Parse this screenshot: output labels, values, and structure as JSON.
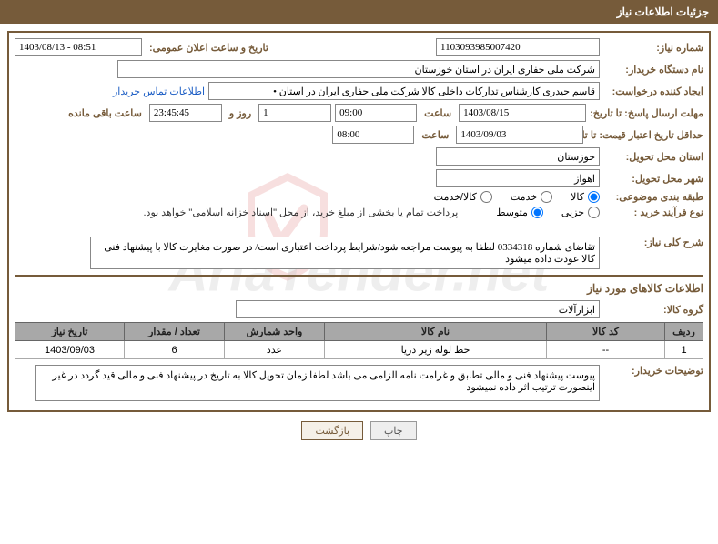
{
  "colors": {
    "primary": "#765b3a",
    "border": "#888888",
    "link": "#1a5cc4",
    "th_bg": "#a8a8a8",
    "white": "#ffffff"
  },
  "header": {
    "title": "جزئیات اطلاعات نیاز"
  },
  "watermark": "AriaTender.net",
  "fields": {
    "need_no_label": "شماره نیاز:",
    "need_no": "1103093985007420",
    "announce_label": "تاریخ و ساعت اعلان عمومی:",
    "announce_value": "1403/08/13 - 08:51",
    "buyer_label": "نام دستگاه خریدار:",
    "buyer_value": "شرکت ملی حفاری ایران در استان خوزستان",
    "requester_label": "ایجاد کننده درخواست:",
    "requester_value": "قاسم حیدری کارشناس تدارکات داخلی کالا شرکت ملی حفاری ایران در استان •",
    "contact_link": "اطلاعات تماس خریدار",
    "deadline_label": "مهلت ارسال پاسخ: تا تاریخ:",
    "deadline_date": "1403/08/15",
    "hour_label": "ساعت",
    "deadline_time": "09:00",
    "days_count": "1",
    "days_and": "روز و",
    "countdown": "23:45:45",
    "remaining_label": "ساعت باقی مانده",
    "validity_label": "حداقل تاریخ اعتبار قیمت: تا تاریخ:",
    "validity_date": "1403/09/03",
    "validity_time": "08:00",
    "province_label": "استان محل تحویل:",
    "province_value": "خوزستان",
    "city_label": "شهر محل تحویل:",
    "city_value": "اهواز",
    "category_label": "طبقه بندی موضوعی:",
    "process_label": "نوع فرآیند خرید :",
    "payment_note": "پرداخت تمام یا بخشی از مبلغ خرید، از محل \"اسناد خزانه اسلامی\" خواهد بود.",
    "description_label": "شرح کلی نیاز:",
    "description_value": "تقاضای شماره 0334318 لطفا به پیوست مراجعه شود/شرایط پرداخت اعتباری است/ در صورت مغایرت کالا با پیشنهاد فنی کالا عودت داده میشود",
    "buyer_notes_label": "توضیحات خریدار:",
    "buyer_notes_value": "پیوست پیشنهاد فنی و مالی تطابق و غرامت نامه الزامی می باشد لطفا زمان تحویل کالا به تاریخ در پیشنهاد فنی و مالی قید گردد در غیر اینصورت ترتیب اثر داده نمیشود"
  },
  "radios": {
    "category": [
      {
        "label": "کالا",
        "checked": true
      },
      {
        "label": "خدمت",
        "checked": false
      },
      {
        "label": "کالا/خدمت",
        "checked": false
      }
    ],
    "process": [
      {
        "label": "جزیی",
        "checked": false
      },
      {
        "label": "متوسط",
        "checked": true
      }
    ]
  },
  "items_section": {
    "title": "اطلاعات کالاهای مورد نیاز",
    "group_label": "گروه کالا:",
    "group_value": "ابزارآلات"
  },
  "table": {
    "headers": [
      "ردیف",
      "کد کالا",
      "نام کالا",
      "واحد شمارش",
      "تعداد / مقدار",
      "تاریخ نیاز"
    ],
    "rows": [
      [
        "1",
        "--",
        "خط لوله زیر دریا",
        "عدد",
        "6",
        "1403/09/03"
      ]
    ],
    "col_widths": [
      "42px",
      "130px",
      "auto",
      "110px",
      "110px",
      "120px"
    ]
  },
  "buttons": {
    "print": "چاپ",
    "back": "بازگشت"
  }
}
